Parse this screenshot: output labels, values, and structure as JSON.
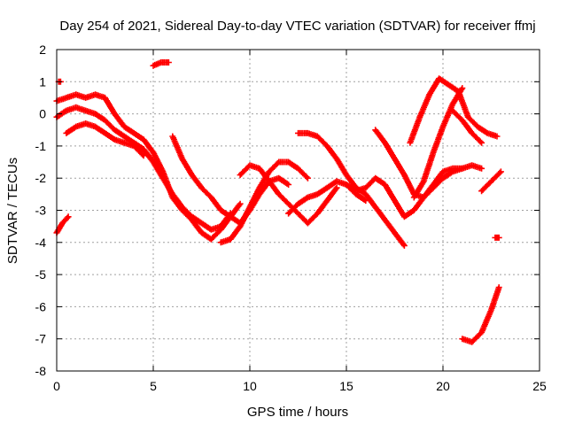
{
  "chart_data": {
    "type": "scatter",
    "title": "Day 254 of 2021, Sidereal Day-to-day VTEC variation (SDTVAR) for receiver ffmj",
    "xlabel": "GPS time / hours",
    "ylabel": "SDTVAR / TECUs",
    "xlim": [
      0,
      25
    ],
    "ylim": [
      -8,
      2
    ],
    "xticks": [
      0,
      5,
      10,
      15,
      20,
      25
    ],
    "yticks": [
      -8,
      -7,
      -6,
      -5,
      -4,
      -3,
      -2,
      -1,
      0,
      1,
      2
    ],
    "grid": true,
    "marker": "plus",
    "series": [
      {
        "name": "SDTVAR",
        "color": "#ff0000",
        "tracks": [
          {
            "x": [
              0.0,
              0.5,
              1.0,
              1.5,
              2.0,
              2.5,
              3.0,
              3.5,
              4.0,
              4.5,
              5.0,
              5.5,
              6.0,
              6.5,
              7.0,
              7.5,
              8.0,
              8.5,
              9.0,
              9.5
            ],
            "y": [
              0.4,
              0.5,
              0.6,
              0.5,
              0.6,
              0.5,
              0.0,
              -0.4,
              -0.6,
              -0.8,
              -1.2,
              -1.8,
              -2.6,
              -3.0,
              -3.3,
              -3.7,
              -3.9,
              -3.6,
              -3.2,
              -2.8
            ]
          },
          {
            "x": [
              0.0,
              0.5,
              1.0,
              1.5,
              2.0,
              2.5,
              3.0,
              3.5,
              4.0,
              4.5,
              5.0,
              5.5,
              6.0,
              6.5,
              7.0,
              7.5,
              8.0,
              8.5,
              9.0
            ],
            "y": [
              -0.1,
              0.1,
              0.2,
              0.1,
              0.0,
              -0.2,
              -0.5,
              -0.7,
              -0.9,
              -1.1,
              -1.5,
              -2.0,
              -2.5,
              -2.9,
              -3.2,
              -3.4,
              -3.6,
              -3.5,
              -3.1
            ]
          },
          {
            "x": [
              0.5,
              1.0,
              1.5,
              2.0,
              2.5,
              3.0,
              3.5,
              4.0,
              4.5
            ],
            "y": [
              -0.6,
              -0.4,
              -0.3,
              -0.4,
              -0.6,
              -0.8,
              -0.9,
              -1.0,
              -1.3
            ]
          },
          {
            "x": [
              6.0,
              6.5,
              7.0,
              7.5,
              8.0,
              8.5,
              9.0,
              9.5,
              10.0,
              10.5,
              11.0,
              11.5,
              12.0
            ],
            "y": [
              -0.7,
              -1.4,
              -1.9,
              -2.3,
              -2.6,
              -3.0,
              -3.2,
              -3.4,
              -3.0,
              -2.5,
              -2.1,
              -2.0,
              -2.2
            ]
          },
          {
            "x": [
              8.5,
              9.0,
              9.5,
              10.0,
              10.5,
              11.0,
              11.5,
              12.0,
              12.5,
              13.0
            ],
            "y": [
              -4.0,
              -3.9,
              -3.5,
              -2.9,
              -2.3,
              -1.8,
              -1.5,
              -1.5,
              -1.7,
              -2.0
            ]
          },
          {
            "x": [
              9.5,
              10.0,
              10.5,
              11.0,
              11.5,
              12.0,
              12.5,
              13.0,
              13.5,
              14.0,
              14.5
            ],
            "y": [
              -1.9,
              -1.6,
              -1.7,
              -2.1,
              -2.5,
              -2.8,
              -3.1,
              -3.4,
              -3.1,
              -2.7,
              -2.3
            ]
          },
          {
            "x": [
              12.0,
              12.5,
              13.0,
              13.5,
              14.0,
              14.5,
              15.0,
              15.5,
              16.0
            ],
            "y": [
              -3.1,
              -2.8,
              -2.6,
              -2.5,
              -2.3,
              -2.1,
              -2.2,
              -2.5,
              -2.7
            ]
          },
          {
            "x": [
              12.5,
              13.0,
              13.5,
              14.0,
              14.5,
              15.0,
              15.5,
              16.0,
              16.5,
              17.0,
              17.5,
              18.0
            ],
            "y": [
              -0.6,
              -0.6,
              -0.7,
              -1.0,
              -1.4,
              -1.9,
              -2.3,
              -2.5,
              -2.9,
              -3.3,
              -3.7,
              -4.1
            ]
          },
          {
            "x": [
              15.0,
              15.5,
              16.0,
              16.5,
              17.0,
              17.5,
              18.0,
              18.5,
              19.0,
              19.5,
              20.0,
              20.5,
              21.0
            ],
            "y": [
              -2.2,
              -2.4,
              -2.3,
              -2.0,
              -2.2,
              -2.7,
              -3.2,
              -3.0,
              -2.6,
              -2.3,
              -2.0,
              -1.8,
              -1.7
            ]
          },
          {
            "x": [
              16.5,
              17.0,
              17.5,
              18.0,
              18.5,
              19.0,
              19.5,
              20.0,
              20.5,
              21.0,
              21.5,
              22.0
            ],
            "y": [
              -0.5,
              -0.9,
              -1.4,
              -1.9,
              -2.5,
              -2.6,
              -2.2,
              -1.8,
              -1.7,
              -1.7,
              -1.6,
              -1.7
            ]
          },
          {
            "x": [
              18.5,
              19.0,
              19.5,
              20.0,
              20.5,
              21.0
            ],
            "y": [
              -2.6,
              -2.1,
              -1.2,
              -0.4,
              0.3,
              0.8
            ]
          },
          {
            "x": [
              18.3,
              18.8,
              19.3,
              19.8,
              20.3,
              20.8,
              21.3,
              21.8,
              22.3,
              22.8
            ],
            "y": [
              -0.9,
              -0.1,
              0.6,
              1.1,
              0.9,
              0.7,
              -0.1,
              -0.4,
              -0.6,
              -0.7
            ]
          },
          {
            "x": [
              20.5,
              21.0,
              21.5,
              22.0
            ],
            "y": [
              0.1,
              -0.2,
              -0.6,
              -0.9
            ]
          },
          {
            "x": [
              22.0,
              22.5,
              23.0
            ],
            "y": [
              -2.4,
              -2.1,
              -1.8
            ]
          },
          {
            "x": [
              21.0,
              21.5,
              22.0,
              22.5,
              22.9
            ],
            "y": [
              -7.0,
              -7.1,
              -6.8,
              -6.1,
              -5.4
            ]
          },
          {
            "x": [
              0.0,
              0.3,
              0.6
            ],
            "y": [
              -3.7,
              -3.4,
              -3.2
            ]
          },
          {
            "x": [
              0.1,
              0.2
            ],
            "y": [
              1.0,
              1.0
            ]
          },
          {
            "x": [
              5.0,
              5.4,
              5.8
            ],
            "y": [
              1.5,
              1.6,
              1.6
            ]
          },
          {
            "x": [
              22.7,
              22.9
            ],
            "y": [
              -3.85,
              -3.85
            ]
          }
        ]
      }
    ]
  }
}
